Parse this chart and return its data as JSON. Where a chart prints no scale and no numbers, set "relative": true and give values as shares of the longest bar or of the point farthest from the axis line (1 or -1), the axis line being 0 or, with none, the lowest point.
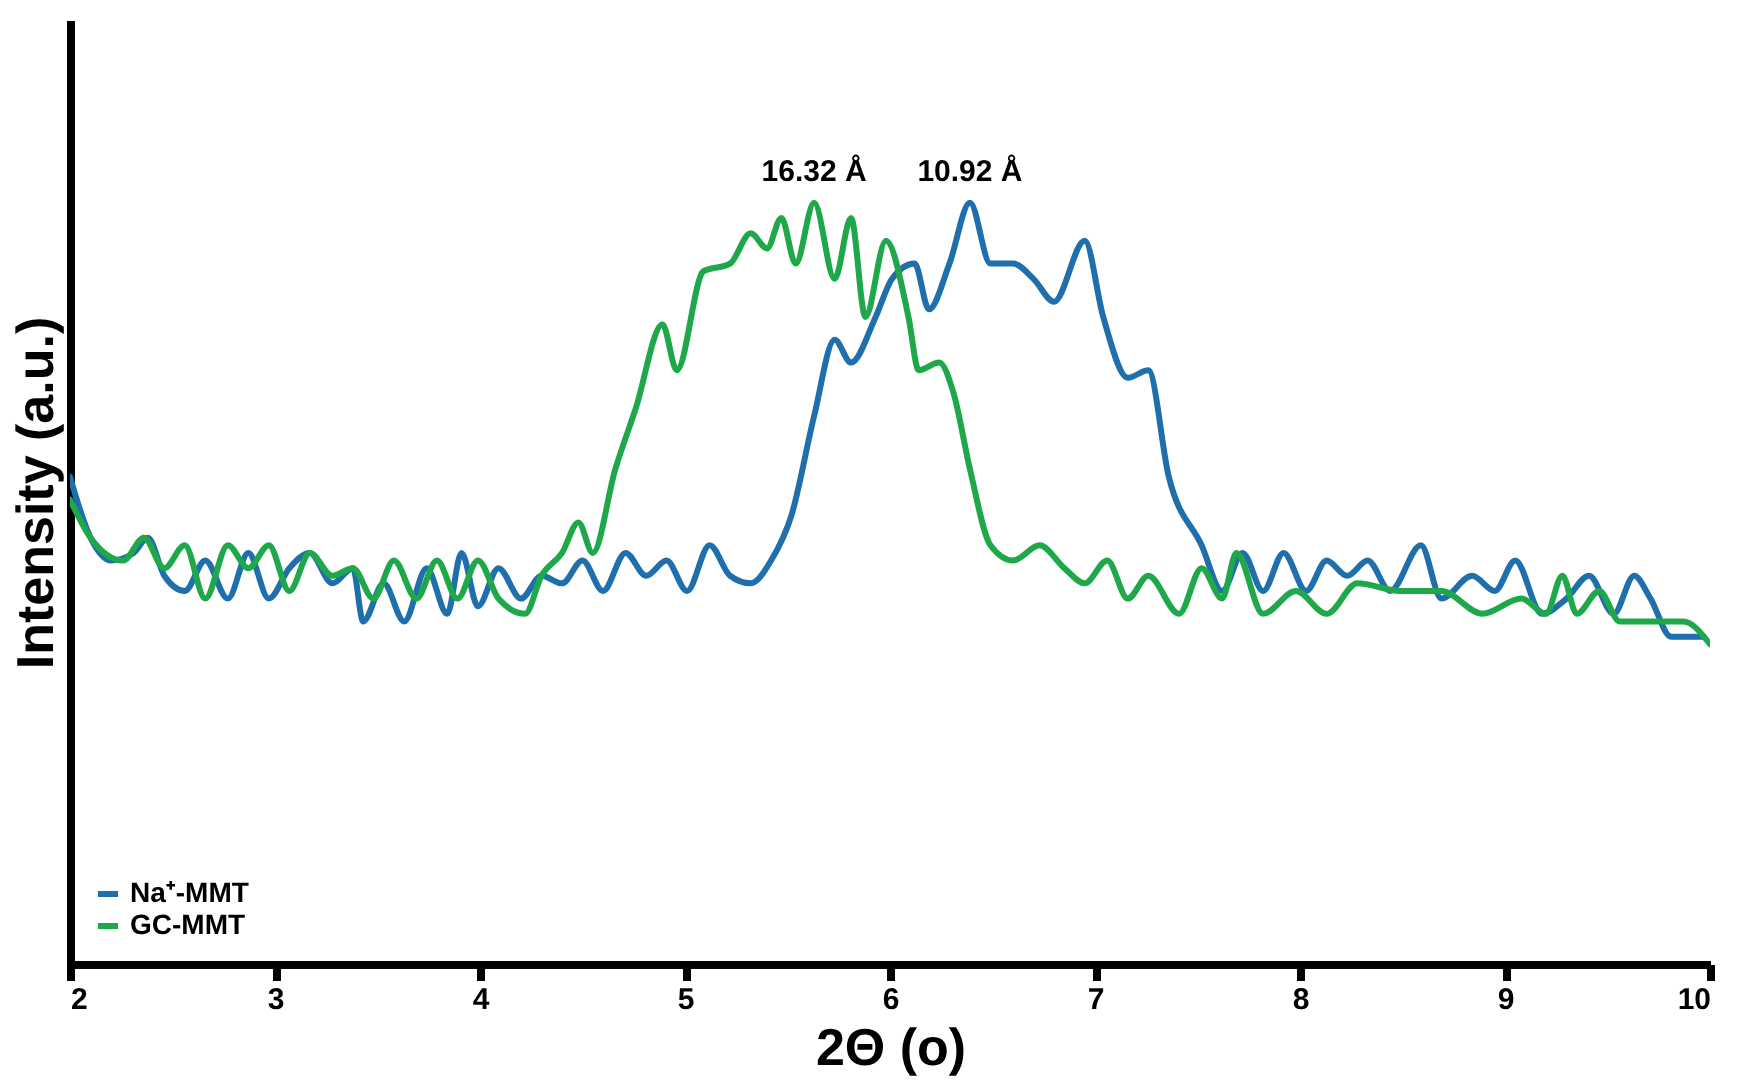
{
  "chart_data": {
    "type": "line",
    "relative": true,
    "xlabel": "2Θ (ο)",
    "ylabel": "Intensity (a.u.)",
    "xlim": [
      2,
      10
    ],
    "xticks": [
      2,
      3,
      4,
      5,
      6,
      7,
      8,
      9,
      10
    ],
    "grid": false,
    "legend": "bottom left",
    "marker": "none",
    "line_style": "solid",
    "annotations": [
      {
        "text": "16.32 Å",
        "x": 5.63,
        "y": 1.0
      },
      {
        "text": "10.92 Å",
        "x": 6.39,
        "y": 1.0
      }
    ],
    "series": [
      {
        "name": "Na⁺-MMT",
        "color": "#1f6fad",
        "x": [
          2.0,
          2.1,
          2.2,
          2.31,
          2.38,
          2.46,
          2.56,
          2.66,
          2.77,
          2.87,
          2.97,
          3.07,
          3.17,
          3.28,
          3.38,
          3.43,
          3.53,
          3.63,
          3.74,
          3.84,
          3.91,
          3.99,
          4.09,
          4.2,
          4.3,
          4.4,
          4.5,
          4.6,
          4.71,
          4.81,
          4.91,
          5.01,
          5.12,
          5.22,
          5.32,
          5.42,
          5.52,
          5.63,
          5.73,
          5.81,
          5.93,
          6.01,
          6.12,
          6.19,
          6.29,
          6.39,
          6.49,
          6.6,
          6.7,
          6.8,
          6.95,
          7.04,
          7.16,
          7.26,
          7.36,
          7.52,
          7.62,
          7.72,
          7.82,
          7.92,
          8.03,
          8.13,
          8.23,
          8.33,
          8.44,
          8.59,
          8.69,
          8.84,
          8.95,
          9.05,
          9.18,
          9.3,
          9.41,
          9.53,
          9.63,
          9.71,
          9.81,
          9.97
        ],
        "values": [
          0.64,
          0.56,
          0.53,
          0.54,
          0.56,
          0.51,
          0.49,
          0.53,
          0.48,
          0.54,
          0.48,
          0.52,
          0.54,
          0.5,
          0.52,
          0.45,
          0.5,
          0.45,
          0.52,
          0.46,
          0.54,
          0.47,
          0.52,
          0.48,
          0.51,
          0.5,
          0.53,
          0.49,
          0.54,
          0.51,
          0.53,
          0.49,
          0.55,
          0.51,
          0.5,
          0.53,
          0.59,
          0.72,
          0.82,
          0.79,
          0.85,
          0.9,
          0.92,
          0.86,
          0.92,
          1.0,
          0.92,
          0.92,
          0.9,
          0.87,
          0.95,
          0.85,
          0.77,
          0.78,
          0.64,
          0.55,
          0.49,
          0.54,
          0.49,
          0.54,
          0.49,
          0.53,
          0.51,
          0.53,
          0.49,
          0.55,
          0.48,
          0.51,
          0.49,
          0.53,
          0.46,
          0.48,
          0.51,
          0.46,
          0.51,
          0.48,
          0.43,
          0.43
        ]
      },
      {
        "name": "GC-MMT",
        "color": "#1fa84a",
        "x": [
          2.0,
          2.1,
          2.26,
          2.36,
          2.46,
          2.56,
          2.66,
          2.77,
          2.87,
          2.97,
          3.07,
          3.17,
          3.28,
          3.38,
          3.48,
          3.58,
          3.69,
          3.79,
          3.89,
          3.99,
          4.09,
          4.22,
          4.3,
          4.4,
          4.48,
          4.55,
          4.66,
          4.76,
          4.89,
          4.96,
          5.09,
          5.22,
          5.32,
          5.4,
          5.47,
          5.54,
          5.63,
          5.73,
          5.81,
          5.88,
          5.98,
          6.09,
          6.14,
          6.24,
          6.31,
          6.39,
          6.49,
          6.6,
          6.73,
          6.85,
          6.95,
          7.06,
          7.16,
          7.26,
          7.41,
          7.52,
          7.62,
          7.69,
          7.82,
          7.98,
          8.13,
          8.28,
          8.49,
          8.69,
          8.89,
          9.08,
          9.2,
          9.28,
          9.35,
          9.46,
          9.56,
          9.71,
          9.87,
          10.0
        ],
        "values": [
          0.61,
          0.56,
          0.53,
          0.56,
          0.52,
          0.55,
          0.48,
          0.55,
          0.52,
          0.55,
          0.49,
          0.54,
          0.51,
          0.52,
          0.48,
          0.53,
          0.48,
          0.53,
          0.48,
          0.53,
          0.48,
          0.46,
          0.51,
          0.54,
          0.58,
          0.54,
          0.65,
          0.73,
          0.84,
          0.78,
          0.91,
          0.92,
          0.96,
          0.94,
          0.98,
          0.92,
          1.0,
          0.9,
          0.98,
          0.85,
          0.95,
          0.85,
          0.78,
          0.79,
          0.75,
          0.65,
          0.55,
          0.53,
          0.55,
          0.52,
          0.5,
          0.53,
          0.48,
          0.51,
          0.46,
          0.52,
          0.48,
          0.54,
          0.46,
          0.49,
          0.46,
          0.5,
          0.49,
          0.49,
          0.46,
          0.48,
          0.46,
          0.51,
          0.46,
          0.49,
          0.45,
          0.45,
          0.45,
          0.42
        ]
      }
    ]
  }
}
